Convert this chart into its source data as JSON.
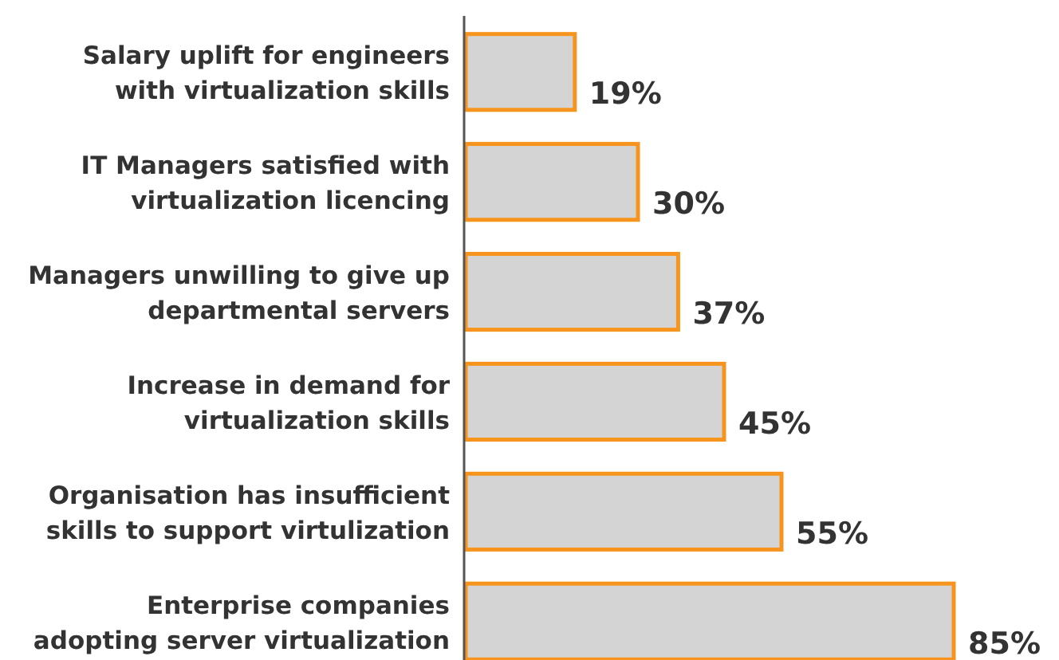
{
  "chart_data": {
    "type": "bar",
    "orientation": "horizontal",
    "categories": [
      "Salary uplift for engineers\nwith virtualization skills",
      "IT Managers satisfied with\nvirtualization licencing",
      "Managers unwilling to give up\ndepartmental servers",
      "Increase in demand for\nvirtualization skills",
      "Organisation has insufficient\nskills to support virtulization",
      "Enterprise companies\nadopting server virtualization"
    ],
    "values": [
      19,
      30,
      37,
      45,
      55,
      85
    ],
    "value_labels": [
      "19%",
      "30%",
      "37%",
      "45%",
      "55%",
      "85%"
    ],
    "color": "#d4d4d4"
  }
}
